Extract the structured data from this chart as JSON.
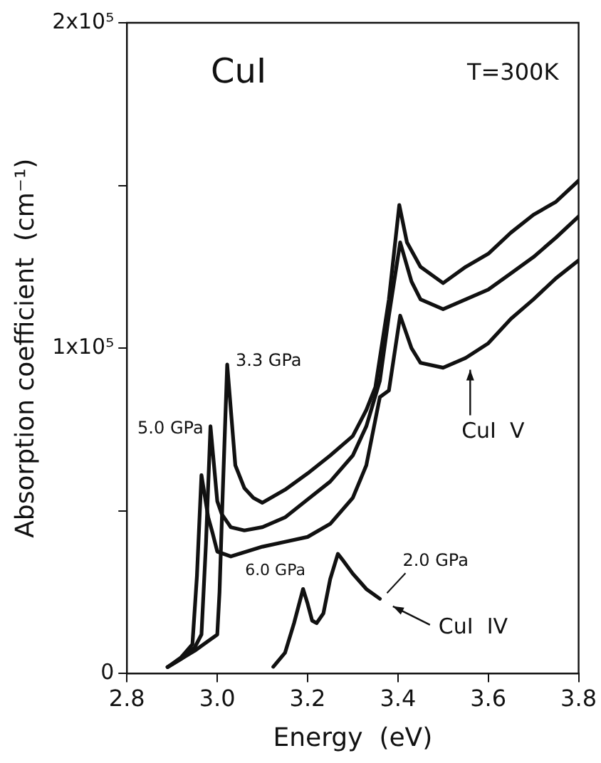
{
  "chart_data": {
    "type": "line",
    "xlabel": "Energy  (eV)",
    "ylabel": "Absorption coefficient  (cm⁻¹)",
    "xlim": [
      2.8,
      3.8
    ],
    "xticks": [
      2.8,
      {
        "value": 3,
        "label": "3.0"
      },
      3.2,
      3.4,
      3.6,
      3.8
    ],
    "ylim": [
      0,
      200000
    ],
    "yticks": [
      {
        "value": 0,
        "label": "0"
      },
      {
        "value": 50000,
        "label": null
      },
      {
        "value": 100000,
        "label": "1x10⁵"
      },
      {
        "value": 150000,
        "label": null
      },
      {
        "value": 200000,
        "label": "2x10⁵"
      }
    ],
    "grid": false,
    "legend": false,
    "marker": "none",
    "line_style": "solid",
    "annotations": [
      "CuI",
      "T=300K",
      {
        "text": "CuI  V",
        "x": 3.56,
        "y": 96000
      },
      {
        "text": "CuI  IV",
        "x": 3.37,
        "y": 22000
      }
    ],
    "series": [
      {
        "name": "3.3 GPa",
        "color": "#111111",
        "x": [
          2.89,
          2.92,
          2.95,
          2.98,
          3.0,
          3.005,
          3.012,
          3.022,
          3.04,
          3.06,
          3.08,
          3.1,
          3.15,
          3.2,
          3.25,
          3.3,
          3.33,
          3.35,
          3.38,
          3.403,
          3.42,
          3.45,
          3.5,
          3.55,
          3.6,
          3.65,
          3.7,
          3.75,
          3.8
        ],
        "values": [
          2000,
          4500,
          7000,
          10000,
          12000,
          25000,
          55000,
          95000,
          64000,
          57000,
          54000,
          52500,
          56500,
          61500,
          67000,
          73000,
          81000,
          88000,
          115000,
          144000,
          132500,
          125000,
          120000,
          125000,
          129000,
          135500,
          141000,
          145000,
          151500
        ]
      },
      {
        "name": "5.0 GPa",
        "color": "#111111",
        "x": [
          2.89,
          2.92,
          2.95,
          2.965,
          2.975,
          2.985,
          3.0,
          3.01,
          3.03,
          3.06,
          3.1,
          3.15,
          3.2,
          3.25,
          3.3,
          3.33,
          3.36,
          3.38,
          3.405,
          3.43,
          3.45,
          3.5,
          3.55,
          3.6,
          3.65,
          3.7,
          3.75,
          3.8
        ],
        "values": [
          2000,
          4500,
          8000,
          12000,
          40000,
          76000,
          53000,
          49000,
          45000,
          44000,
          45000,
          48000,
          53500,
          59000,
          67000,
          76000,
          90000,
          110000,
          132500,
          120500,
          115000,
          112000,
          115000,
          118000,
          123000,
          128000,
          134000,
          140500
        ]
      },
      {
        "name": "6.0 GPa",
        "color": "#111111",
        "x": [
          2.89,
          2.92,
          2.945,
          2.955,
          2.965,
          2.98,
          2.99,
          3.0,
          3.03,
          3.1,
          3.15,
          3.2,
          3.25,
          3.3,
          3.33,
          3.36,
          3.38,
          3.405,
          3.43,
          3.45,
          3.5,
          3.55,
          3.6,
          3.65,
          3.7,
          3.75,
          3.8
        ],
        "values": [
          2000,
          5000,
          9000,
          30000,
          61000,
          48000,
          43000,
          37500,
          36000,
          39000,
          40500,
          42000,
          46000,
          54000,
          64000,
          85000,
          87000,
          110000,
          100000,
          95500,
          94000,
          97000,
          101500,
          109000,
          115000,
          121500,
          127000
        ]
      },
      {
        "name": "2.0 GPa",
        "color": "#111111",
        "x": [
          3.124,
          3.15,
          3.17,
          3.19,
          3.2,
          3.21,
          3.22,
          3.235,
          3.25,
          3.267,
          3.28,
          3.3,
          3.33,
          3.36
        ],
        "values": [
          2100,
          6400,
          15500,
          26000,
          21500,
          16300,
          15500,
          18500,
          29000,
          36800,
          34500,
          30700,
          26000,
          23000
        ]
      }
    ]
  }
}
